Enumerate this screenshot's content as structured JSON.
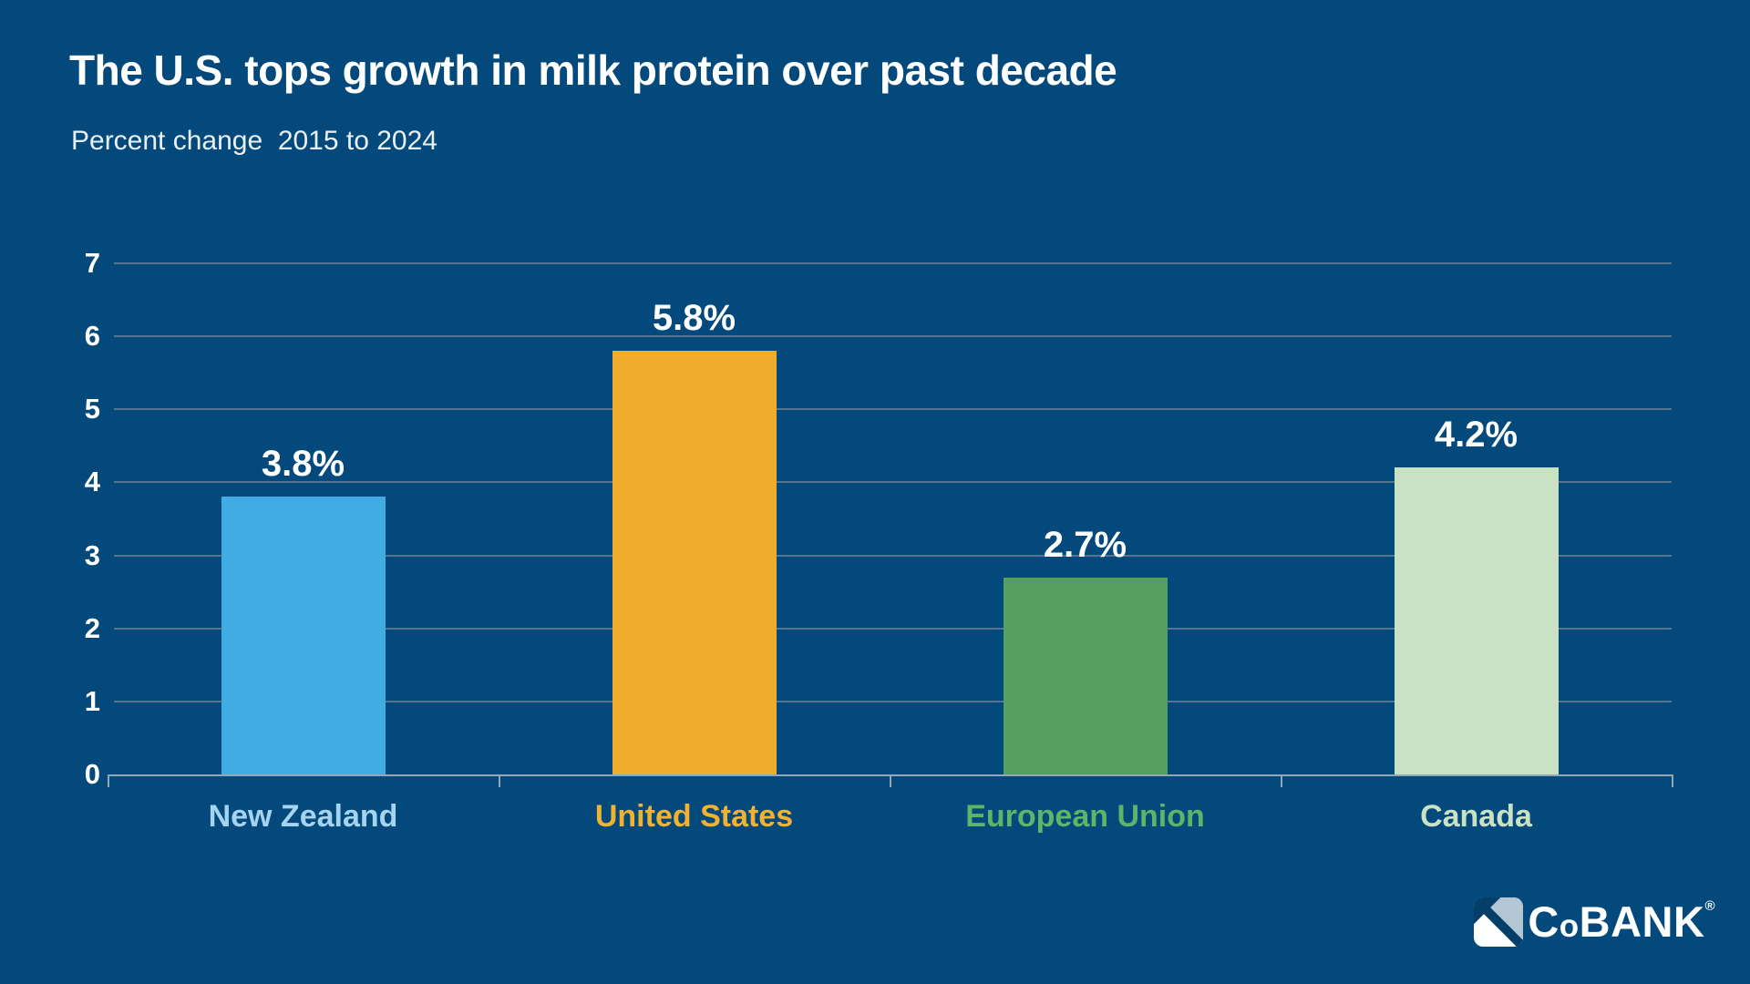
{
  "header": {
    "title": "The U.S. tops growth in milk protein over past decade",
    "subtitle": "Percent change  2015 to 2024"
  },
  "chart_data": {
    "type": "bar",
    "title": "The U.S. tops growth in milk protein over past decade",
    "subtitle": "Percent change 2015 to 2024",
    "categories": [
      "New Zealand",
      "United States",
      "European Union",
      "Canada"
    ],
    "values": [
      3.8,
      5.8,
      2.7,
      4.2
    ],
    "value_labels": [
      "3.8%",
      "5.8%",
      "2.7%",
      "4.2%"
    ],
    "bar_colors": [
      "#41ACE3",
      "#EFAD2B",
      "#55A05F",
      "#C9E2C4"
    ],
    "category_label_colors": [
      "#A5D4F0",
      "#F2B231",
      "#5CB568",
      "#C9E2C4"
    ],
    "xlabel": "",
    "ylabel": "",
    "ylim": [
      0,
      7
    ],
    "yticks": [
      0,
      1,
      2,
      3,
      4,
      5,
      6,
      7
    ],
    "grid": true,
    "legend": false
  },
  "branding": {
    "name": "CoBANK",
    "logo_c": "C",
    "logo_o": "o",
    "logo_bank": "BANK",
    "registered": "®"
  },
  "colors": {
    "background": "#04497B",
    "gridline": "#56748E",
    "axis": "#93A7B7",
    "text": "#FFFFFF",
    "logo_sail_gray": "#B3C6D4",
    "logo_navy": "#053E69"
  }
}
